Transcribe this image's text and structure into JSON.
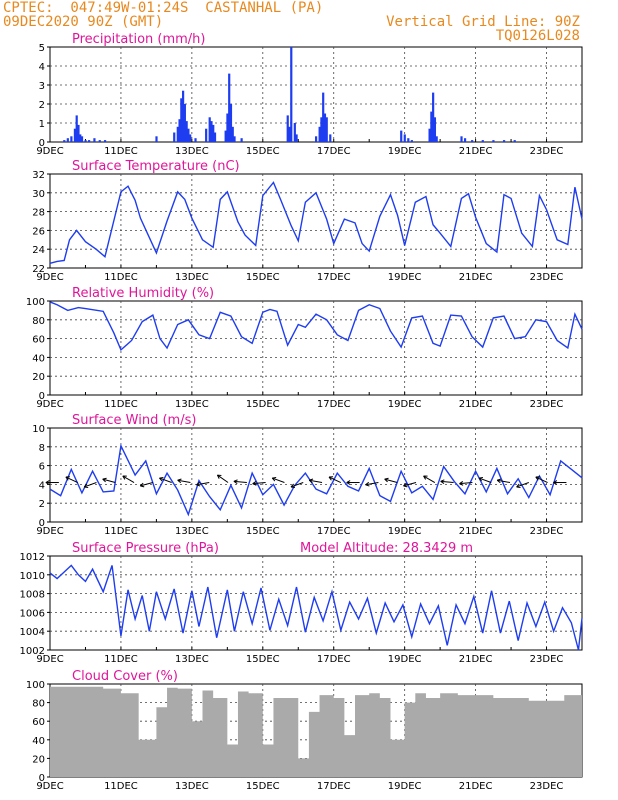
{
  "header": {
    "line1": "CPTEC:  047:49W-01:24S  CASTANHAL (PA)",
    "line2": "09DEC2020 90Z (GMT)",
    "grid_note": "Vertical Grid Line: 90Z",
    "code": "TQ0126L028"
  },
  "colors": {
    "header": "#e8891f",
    "title": "#e0169a",
    "line": "#1f3df0",
    "bar": "#1f3df0",
    "cloud": "#aaaaaa",
    "grid": "#444444"
  },
  "x_labels": [
    "9DEC",
    "11DEC",
    "13DEC",
    "15DEC",
    "17DEC",
    "19DEC",
    "21DEC",
    "23DEC"
  ],
  "chart_data": [
    {
      "type": "bar",
      "title": "Precipitation (mm/h)",
      "ylim": [
        0,
        5
      ],
      "yticks": [
        "0",
        "1",
        "2",
        "3",
        "4",
        "5"
      ],
      "x_unit": "days since 9DEC",
      "xlim": [
        0,
        15
      ],
      "x": [
        0.4,
        0.5,
        0.6,
        0.7,
        0.75,
        0.8,
        0.85,
        0.9,
        1.0,
        1.1,
        1.25,
        1.4,
        1.55,
        3.0,
        3.5,
        3.6,
        3.65,
        3.7,
        3.75,
        3.8,
        3.85,
        3.9,
        3.95,
        4.1,
        4.4,
        4.5,
        4.55,
        4.6,
        4.65,
        4.95,
        5.0,
        5.05,
        5.1,
        5.15,
        5.2,
        5.4,
        6.7,
        6.75,
        6.8,
        6.9,
        6.95,
        7.5,
        7.6,
        7.65,
        7.7,
        7.75,
        7.8,
        7.9,
        9.9,
        10.0,
        10.1,
        10.2,
        10.7,
        10.75,
        10.8,
        10.85,
        10.9,
        11.6,
        11.7,
        11.9,
        12.2,
        12.5,
        12.8,
        13.1
      ],
      "values": [
        0.1,
        0.2,
        0.3,
        0.7,
        1.4,
        0.9,
        0.4,
        0.3,
        0.1,
        0.1,
        0.2,
        0.1,
        0.1,
        0.3,
        0.5,
        0.8,
        1.2,
        2.3,
        2.7,
        2.0,
        1.1,
        0.7,
        0.4,
        0.2,
        0.7,
        1.3,
        1.1,
        0.9,
        0.5,
        0.6,
        1.5,
        3.6,
        2.0,
        0.8,
        0.3,
        0.2,
        1.4,
        0.8,
        5.0,
        1.0,
        0.4,
        0.3,
        0.8,
        1.3,
        2.6,
        1.5,
        1.3,
        0.4,
        0.6,
        0.4,
        0.2,
        0.1,
        0.7,
        1.6,
        2.6,
        1.3,
        0.3,
        0.3,
        0.2,
        0.1,
        0.1,
        0.1,
        0.1,
        0.1
      ]
    },
    {
      "type": "line",
      "title": "Surface Temperature (nC)",
      "ylim": [
        22,
        32
      ],
      "yticks": [
        "22",
        "24",
        "26",
        "28",
        "30",
        "32"
      ],
      "x_unit": "days since 9DEC",
      "xlim": [
        0,
        15
      ],
      "x": [
        0,
        0.2,
        0.4,
        0.55,
        0.75,
        1.0,
        1.3,
        1.55,
        2.0,
        2.2,
        2.4,
        2.55,
        3.0,
        3.3,
        3.6,
        3.8,
        4.0,
        4.3,
        4.6,
        4.8,
        5.0,
        5.3,
        5.5,
        5.8,
        6.0,
        6.3,
        6.5,
        6.8,
        7.0,
        7.2,
        7.5,
        7.8,
        8.0,
        8.3,
        8.6,
        8.8,
        9.0,
        9.3,
        9.6,
        9.8,
        10.0,
        10.3,
        10.6,
        10.8,
        11.0,
        11.3,
        11.6,
        11.8,
        12.0,
        12.3,
        12.6,
        12.8,
        13.0,
        13.3,
        13.6,
        13.8,
        14.0,
        14.3,
        14.6,
        14.8,
        15.0
      ],
      "values": [
        22.5,
        22.7,
        22.8,
        25.0,
        26.0,
        24.8,
        24.0,
        23.2,
        30.1,
        30.7,
        29.2,
        27.3,
        23.6,
        27.0,
        30.1,
        29.3,
        27.3,
        25.0,
        24.2,
        29.3,
        30.1,
        26.9,
        25.5,
        24.4,
        29.7,
        31.1,
        29.3,
        26.5,
        24.9,
        29.0,
        30.0,
        27.2,
        24.6,
        27.2,
        26.8,
        24.6,
        23.8,
        27.5,
        29.8,
        27.6,
        24.4,
        29.0,
        29.6,
        26.6,
        25.7,
        24.3,
        29.4,
        29.9,
        27.4,
        24.6,
        23.7,
        29.8,
        29.4,
        25.7,
        24.3,
        29.7,
        28.2,
        25.0,
        24.5,
        30.6,
        27.2
      ]
    },
    {
      "type": "line",
      "title": "Relative Humidity (%)",
      "ylim": [
        0,
        100
      ],
      "yticks": [
        "0",
        "20",
        "40",
        "60",
        "80",
        "100"
      ],
      "x_unit": "days since 9DEC",
      "xlim": [
        0,
        15
      ],
      "x": [
        0,
        0.2,
        0.5,
        0.8,
        1.0,
        1.5,
        1.8,
        2.0,
        2.3,
        2.6,
        2.9,
        3.1,
        3.3,
        3.6,
        3.9,
        4.2,
        4.5,
        4.8,
        5.1,
        5.4,
        5.7,
        6.0,
        6.2,
        6.4,
        6.7,
        7.0,
        7.2,
        7.5,
        7.8,
        8.1,
        8.4,
        8.7,
        9.0,
        9.3,
        9.6,
        9.9,
        10.2,
        10.5,
        10.8,
        11.0,
        11.3,
        11.6,
        11.9,
        12.2,
        12.5,
        12.8,
        13.1,
        13.4,
        13.7,
        14.0,
        14.3,
        14.6,
        14.8,
        15.0
      ],
      "values": [
        99,
        96,
        90,
        93,
        92,
        89,
        66,
        48,
        58,
        78,
        85,
        60,
        50,
        75,
        80,
        64,
        60,
        88,
        84,
        62,
        55,
        88,
        91,
        89,
        53,
        75,
        72,
        86,
        80,
        64,
        58,
        90,
        96,
        92,
        68,
        51,
        82,
        84,
        55,
        52,
        85,
        84,
        62,
        51,
        82,
        84,
        60,
        62,
        80,
        78,
        58,
        50,
        86,
        70
      ]
    },
    {
      "type": "line",
      "title": "Surface Wind (m/s)",
      "ylim": [
        0,
        10
      ],
      "yticks": [
        "0",
        "2",
        "4",
        "6",
        "8",
        "10"
      ],
      "x_unit": "days since 9DEC",
      "xlim": [
        0,
        15
      ],
      "x": [
        0,
        0.3,
        0.6,
        0.9,
        1.2,
        1.5,
        1.8,
        2.0,
        2.4,
        2.7,
        3.0,
        3.3,
        3.6,
        3.9,
        4.2,
        4.5,
        4.8,
        5.1,
        5.4,
        5.7,
        6.0,
        6.3,
        6.6,
        6.9,
        7.2,
        7.5,
        7.8,
        8.1,
        8.4,
        8.7,
        9.0,
        9.3,
        9.6,
        9.9,
        10.2,
        10.5,
        10.8,
        11.1,
        11.4,
        11.7,
        12.0,
        12.3,
        12.6,
        12.9,
        13.2,
        13.5,
        13.8,
        14.1,
        14.4,
        14.7,
        15.0
      ],
      "values": [
        3.5,
        2.8,
        5.6,
        3.1,
        5.4,
        3.2,
        3.3,
        8.1,
        5.0,
        6.5,
        3.0,
        5.2,
        3.4,
        0.8,
        4.4,
        2.7,
        1.3,
        3.9,
        1.5,
        5.2,
        2.9,
        4.0,
        1.8,
        3.9,
        5.2,
        3.5,
        3.0,
        5.2,
        3.8,
        3.3,
        5.7,
        2.8,
        2.2,
        5.4,
        3.1,
        3.8,
        2.4,
        5.9,
        4.3,
        3.0,
        5.4,
        3.2,
        5.7,
        3.0,
        4.6,
        2.6,
        4.9,
        2.9,
        6.5,
        5.6,
        4.7
      ]
    },
    {
      "type": "line",
      "title": "Surface Pressure (hPa)",
      "annotation": "Model Altitude: 28.3429 m",
      "ylim": [
        1002,
        1012
      ],
      "yticks": [
        "1002",
        "1004",
        "1006",
        "1008",
        "1010",
        "1012"
      ],
      "x_unit": "days since 9DEC",
      "xlim": [
        0,
        15
      ],
      "x": [
        0,
        0.2,
        0.4,
        0.6,
        0.8,
        1.0,
        1.2,
        1.5,
        1.75,
        2.0,
        2.2,
        2.4,
        2.6,
        2.8,
        3.0,
        3.25,
        3.5,
        3.75,
        4.0,
        4.2,
        4.45,
        4.7,
        5.0,
        5.2,
        5.45,
        5.7,
        5.95,
        6.2,
        6.45,
        6.7,
        6.95,
        7.2,
        7.45,
        7.7,
        7.95,
        8.2,
        8.45,
        8.7,
        8.95,
        9.2,
        9.45,
        9.7,
        9.95,
        10.2,
        10.45,
        10.7,
        10.95,
        11.2,
        11.45,
        11.7,
        11.95,
        12.2,
        12.45,
        12.7,
        12.95,
        13.2,
        13.45,
        13.7,
        13.95,
        14.2,
        14.45,
        14.7,
        14.9,
        15.0
      ],
      "values": [
        1010.2,
        1009.6,
        1010.3,
        1011.0,
        1010.0,
        1009.3,
        1010.6,
        1008.2,
        1011.0,
        1003.5,
        1008.4,
        1005.3,
        1007.8,
        1004.0,
        1008.2,
        1005.3,
        1008.5,
        1003.8,
        1008.3,
        1004.5,
        1008.7,
        1003.3,
        1008.4,
        1004.0,
        1008.2,
        1004.8,
        1008.6,
        1004.1,
        1007.4,
        1004.6,
        1008.7,
        1003.9,
        1007.6,
        1005.1,
        1008.2,
        1004.1,
        1007.1,
        1005.3,
        1007.5,
        1003.8,
        1007.0,
        1005.0,
        1006.8,
        1003.4,
        1006.9,
        1004.8,
        1006.7,
        1002.5,
        1006.8,
        1004.8,
        1007.7,
        1003.8,
        1008.3,
        1003.8,
        1007.2,
        1003.0,
        1007.0,
        1004.5,
        1007.1,
        1004.0,
        1006.5,
        1004.9,
        1002.0,
        1005.4
      ]
    },
    {
      "type": "bar",
      "title": "Cloud Cover (%)",
      "ylim": [
        0,
        100
      ],
      "yticks": [
        "0",
        "20",
        "40",
        "60",
        "80",
        "100"
      ],
      "x_unit": "days since 9DEC",
      "xlim": [
        0,
        15
      ],
      "x": [
        0,
        0.5,
        1.0,
        1.5,
        2.0,
        2.5,
        3.0,
        3.3,
        3.6,
        4.0,
        4.3,
        4.6,
        5.0,
        5.3,
        5.6,
        6.0,
        6.3,
        6.6,
        7.0,
        7.3,
        7.6,
        8.0,
        8.3,
        8.6,
        9.0,
        9.3,
        9.6,
        10.0,
        10.3,
        10.6,
        11.0,
        11.5,
        12.0,
        12.5,
        13.0,
        13.5,
        14.0,
        14.5
      ],
      "values": [
        97,
        97,
        97,
        95,
        90,
        40,
        75,
        96,
        95,
        60,
        93,
        85,
        35,
        92,
        90,
        35,
        85,
        85,
        20,
        70,
        88,
        85,
        45,
        88,
        90,
        85,
        40,
        80,
        90,
        85,
        90,
        88,
        88,
        85,
        85,
        82,
        82,
        88
      ]
    }
  ]
}
